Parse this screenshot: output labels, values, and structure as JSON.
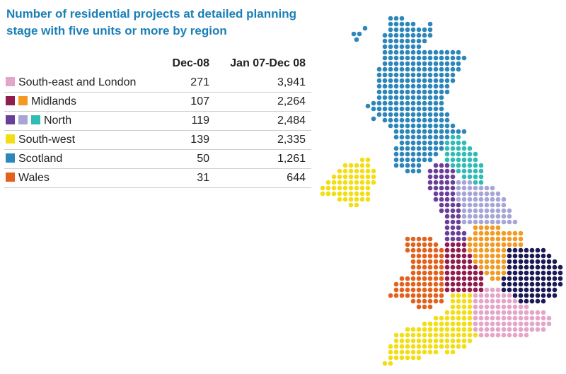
{
  "title": "Number of residential projects at detailed planning stage with five units or more by region",
  "chart_data": {
    "type": "table",
    "columns": [
      "Dec-08",
      "Jan 07-Dec 08"
    ],
    "rows": [
      {
        "label": "South-east and London",
        "dec08": "271",
        "jan07dec08": "3,941",
        "swatches": [
          "#e4a6c8"
        ]
      },
      {
        "label": "Midlands",
        "dec08": "107",
        "jan07dec08": "2,264",
        "swatches": [
          "#8f1d4f",
          "#f39a22"
        ]
      },
      {
        "label": "North",
        "dec08": "119",
        "jan07dec08": "2,484",
        "swatches": [
          "#6a3f98",
          "#a7a5d6",
          "#2ebcb3"
        ]
      },
      {
        "label": "South-west",
        "dec08": "139",
        "jan07dec08": "2,335",
        "swatches": [
          "#f2de15"
        ]
      },
      {
        "label": "Scotland",
        "dec08": "50",
        "jan07dec08": "1,261",
        "swatches": [
          "#2c86ba"
        ]
      },
      {
        "label": "Wales",
        "dec08": "31",
        "jan07dec08": "644",
        "swatches": [
          "#e2621d"
        ]
      }
    ]
  },
  "map_colors": {
    "scotland": "#2c86ba",
    "north_east": "#2ebcb3",
    "north_west": "#6a3f98",
    "yorkshire": "#a7a5d6",
    "east_midlands": "#f39a22",
    "west_midlands": "#8f1d4f",
    "east": "#1c1a55",
    "wales": "#e2621d",
    "south_east": "#e4a6c8",
    "south_west": "#f2de15",
    "northern_ireland": "#f2de15"
  }
}
